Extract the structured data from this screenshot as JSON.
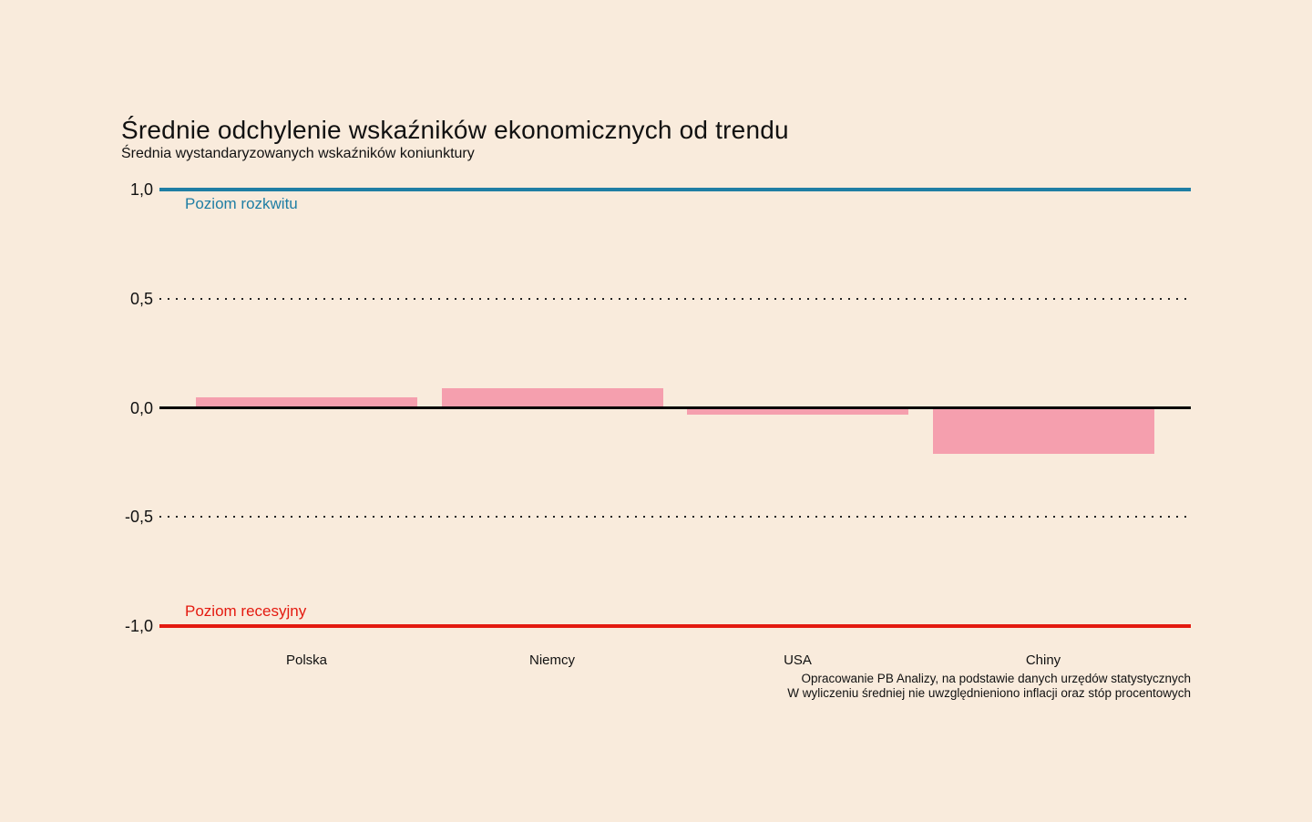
{
  "page": {
    "background_color": "#f9ebdc"
  },
  "chart_data": {
    "type": "bar",
    "title": "Średnie odchylenie wskaźników ekonomicznych od trendu",
    "subtitle": "Średnia wystandaryzowanych wskaźników koniunktury",
    "categories": [
      "Polska",
      "Niemcy",
      "USA",
      "Chiny"
    ],
    "values": [
      0.05,
      0.09,
      -0.03,
      -0.21
    ],
    "bar_color": "#f59fae",
    "xlabel": "",
    "ylabel": "",
    "ylim": [
      -1.0,
      1.0
    ],
    "legend_position": "none",
    "grid": "horizontal dotted lines at 0.5 and -0.5, solid zero line",
    "yticks": [
      {
        "value": 1.0,
        "label": "1,0"
      },
      {
        "value": 0.5,
        "label": "0,5"
      },
      {
        "value": 0.0,
        "label": "0,0"
      },
      {
        "value": -0.5,
        "label": "-0,5"
      },
      {
        "value": -1.0,
        "label": "-1,0"
      }
    ],
    "reference_lines": [
      {
        "value": 1.0,
        "label": "Poziom rozkwitu",
        "color": "#1f7ea4",
        "style": "solid",
        "thickness": 4
      },
      {
        "value": 0.5,
        "label": "",
        "color": "#222222",
        "style": "dotted",
        "thickness": 2
      },
      {
        "value": 0.0,
        "label": "",
        "color": "#000000",
        "style": "solid",
        "thickness": 3
      },
      {
        "value": -0.5,
        "label": "",
        "color": "#222222",
        "style": "dotted",
        "thickness": 2
      },
      {
        "value": -1.0,
        "label": "Poziom recesyjny",
        "color": "#e41a10",
        "style": "solid",
        "thickness": 4
      }
    ]
  },
  "caption": {
    "line1": "Opracowanie PB Analizy, na podstawie danych urzędów statystycznych",
    "line2": "W wyliczeniu średniej nie uwzględnieniono inflacji oraz stóp procentowych"
  }
}
